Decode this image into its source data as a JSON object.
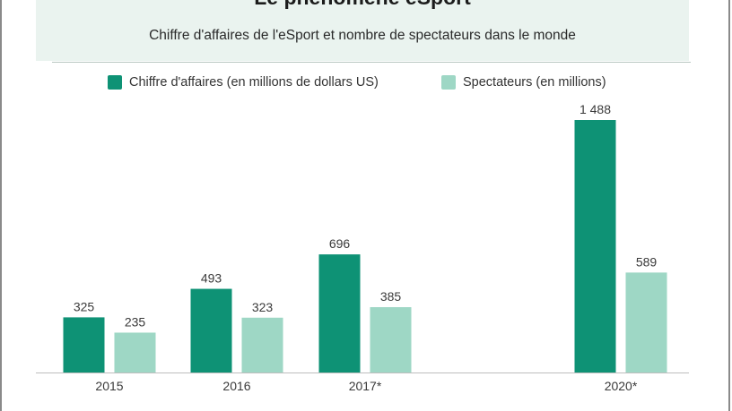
{
  "title": "Le phénomène eSport",
  "subtitle": "Chiffre d'affaires de l'eSport et nombre de spectateurs dans le monde",
  "colors": {
    "revenue": "#0e9275",
    "viewers": "#9ed7c5",
    "axis": "#bdbdbd"
  },
  "chart_data": {
    "type": "bar",
    "categories": [
      "2015",
      "2016",
      "2017*",
      "2020*"
    ],
    "series": [
      {
        "name": "Chiffre d'affaires (en millions de dollars US)",
        "values": [
          325,
          493,
          696,
          1488
        ],
        "labels": [
          "325",
          "493",
          "696",
          "1 488"
        ]
      },
      {
        "name": "Spectateurs (en millions)",
        "values": [
          235,
          323,
          385,
          589
        ],
        "labels": [
          "235",
          "323",
          "385",
          "589"
        ]
      }
    ],
    "ylim": [
      0,
      1488
    ]
  }
}
